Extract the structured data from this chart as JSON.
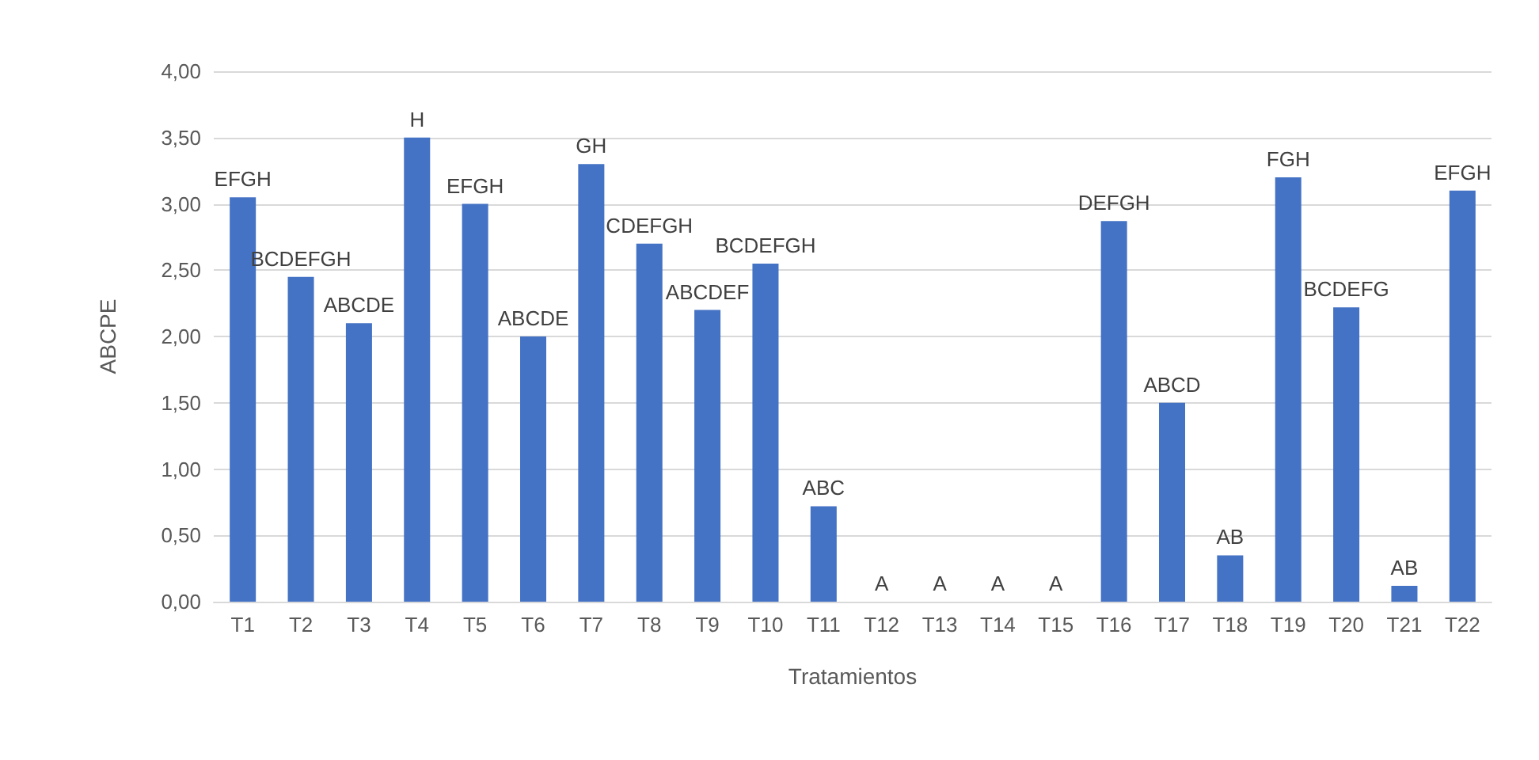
{
  "chart_data": {
    "type": "bar",
    "xlabel": "Tratamientos",
    "ylabel": "ABCPE",
    "categories": [
      "T1",
      "T2",
      "T3",
      "T4",
      "T5",
      "T6",
      "T7",
      "T8",
      "T9",
      "T10",
      "T11",
      "T12",
      "T13",
      "T14",
      "T15",
      "T16",
      "T17",
      "T18",
      "T19",
      "T20",
      "T21",
      "T22"
    ],
    "values": [
      3.05,
      2.45,
      2.1,
      3.5,
      3.0,
      2.0,
      3.3,
      2.7,
      2.2,
      2.55,
      0.72,
      0,
      0,
      0,
      0,
      2.87,
      1.5,
      0.35,
      3.2,
      2.22,
      0.12,
      3.1
    ],
    "value_labels": [
      "EFGH",
      "BCDEFGH",
      "ABCDE",
      "H",
      "EFGH",
      "ABCDE",
      "GH",
      "CDEFGH",
      "ABCDEF",
      "BCDEFGH",
      "ABC",
      "A",
      "A",
      "A",
      "A",
      "DEFGH",
      "ABCD",
      "AB",
      "FGH",
      "BCDEFG",
      "AB",
      "EFGH"
    ],
    "color": "#4472c4",
    "ylim": [
      0,
      4
    ],
    "yticks": [
      {
        "value": 0,
        "label": "0,00"
      },
      {
        "value": 0.5,
        "label": "0,50"
      },
      {
        "value": 1,
        "label": "1,00"
      },
      {
        "value": 1.5,
        "label": "1,50"
      },
      {
        "value": 2,
        "label": "2,00"
      },
      {
        "value": 2.5,
        "label": "2,50"
      },
      {
        "value": 3,
        "label": "3,00"
      },
      {
        "value": 3.5,
        "label": "3,50"
      },
      {
        "value": 4,
        "label": "4,00"
      }
    ],
    "grid": "y"
  }
}
